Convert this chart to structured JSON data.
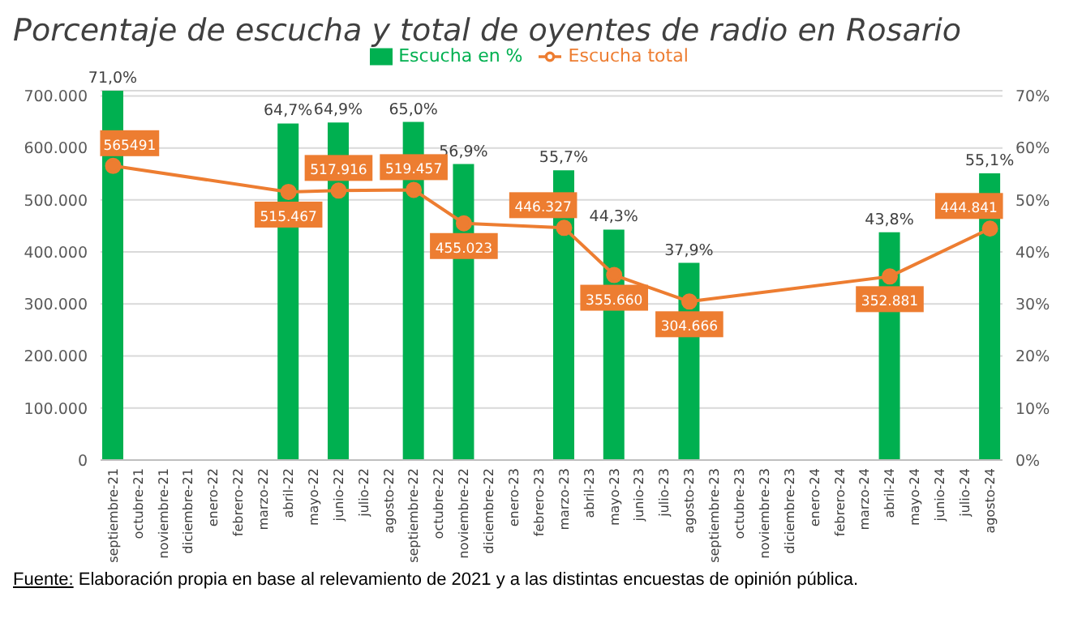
{
  "chart_data": {
    "type": "bar",
    "title": "Porcentaje de escucha y total de oyentes de radio en Rosario",
    "categories": [
      "septiembre-21",
      "octubre-21",
      "noviembre-21",
      "diciembre-21",
      "enero-22",
      "febrero-22",
      "marzo-22",
      "abril-22",
      "mayo-22",
      "junio-22",
      "julio-22",
      "agosto-22",
      "septiembre-22",
      "octubre-22",
      "noviembre-22",
      "diciembre-22",
      "enero-23",
      "febrero-23",
      "marzo-23",
      "abril-23",
      "mayo-23",
      "junio-23",
      "julio-23",
      "agosto-23",
      "septiembre-23",
      "octubre-23",
      "noviembre-23",
      "diciembre-23",
      "enero-24",
      "febrero-24",
      "marzo-24",
      "abril-24",
      "mayo-24",
      "junio-24",
      "julio-24",
      "agosto-24"
    ],
    "series": [
      {
        "name": "Escucha en %",
        "axis": "y2",
        "color": "#00b050",
        "values": [
          71.0,
          null,
          null,
          null,
          null,
          null,
          null,
          64.7,
          null,
          64.9,
          null,
          null,
          65.0,
          null,
          56.9,
          null,
          null,
          null,
          55.7,
          null,
          44.3,
          null,
          null,
          37.9,
          null,
          null,
          null,
          null,
          null,
          null,
          null,
          43.8,
          null,
          null,
          null,
          55.1
        ],
        "value_labels": [
          "71,0%",
          null,
          null,
          null,
          null,
          null,
          null,
          "64,7%",
          null,
          "64,9%",
          null,
          null,
          "65,0%",
          null,
          "56,9%",
          null,
          null,
          null,
          "55,7%",
          null,
          "44,3%",
          null,
          null,
          "37,9%",
          null,
          null,
          null,
          null,
          null,
          null,
          null,
          "43,8%",
          null,
          null,
          null,
          "55,1%"
        ]
      },
      {
        "name": "Escucha total",
        "type": "line",
        "color": "#ed7d31",
        "values": [
          565491,
          null,
          null,
          null,
          null,
          null,
          null,
          515467,
          null,
          517916,
          null,
          null,
          519457,
          null,
          455023,
          null,
          null,
          null,
          446327,
          null,
          355660,
          null,
          null,
          304666,
          null,
          null,
          null,
          null,
          null,
          null,
          null,
          352881,
          null,
          null,
          null,
          444841
        ],
        "value_labels": [
          "565491",
          null,
          null,
          null,
          null,
          null,
          null,
          "515.467",
          null,
          "517.916",
          null,
          null,
          "519.457",
          null,
          "455.023",
          null,
          null,
          null,
          "446.327",
          null,
          "355.660",
          null,
          null,
          "304.666",
          null,
          null,
          null,
          null,
          null,
          null,
          null,
          "352.881",
          null,
          null,
          null,
          "444.841"
        ]
      }
    ],
    "ylim": [
      0,
      710000
    ],
    "yticks": [
      0,
      {
        "value": 100000,
        "label": "100.000"
      },
      {
        "value": 200000,
        "label": "200.000"
      },
      {
        "value": 300000,
        "label": "300.000"
      },
      {
        "value": 400000,
        "label": "400.000"
      },
      {
        "value": 500000,
        "label": "500.000"
      },
      {
        "value": 600000,
        "label": "600.000"
      },
      {
        "value": 700000,
        "label": "700.000"
      }
    ],
    "y2lim": [
      0,
      71
    ],
    "y2ticks": [
      {
        "value": 0,
        "label": "0%"
      },
      {
        "value": 10,
        "label": "10%"
      },
      {
        "value": 20,
        "label": "20%"
      },
      {
        "value": 30,
        "label": "30%"
      },
      {
        "value": 40,
        "label": "40%"
      },
      {
        "value": 50,
        "label": "50%"
      },
      {
        "value": 60,
        "label": "60%"
      },
      {
        "value": 70,
        "label": "70%"
      }
    ],
    "grid": "y",
    "legend": "top",
    "marker": "circle",
    "line_style": "solid",
    "annotations": [
      "Fuente: Elaboración propia en base al relevamiento de 2021 y a las distintas encuestas de opinión pública."
    ]
  }
}
